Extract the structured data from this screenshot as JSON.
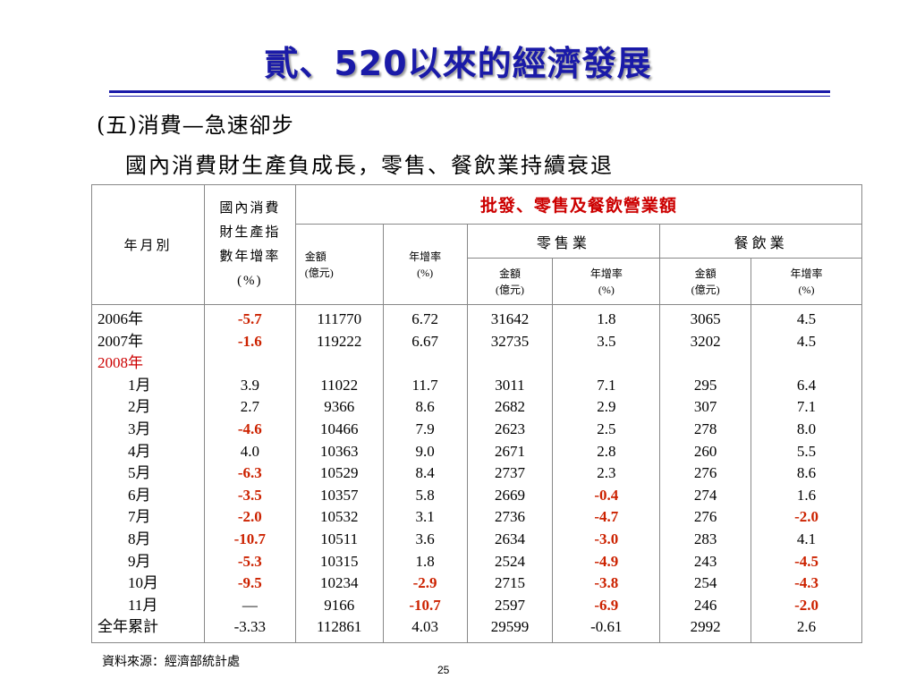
{
  "title": "貳、520以來的經濟發展",
  "section": "(五)消費—急速卻步",
  "subtitle": "國內消費財生產負成長，零售、餐飲業持續衰退",
  "table": {
    "header": {
      "year_month": "年月別",
      "cpi_lines": [
        "國內消費",
        "財生產指",
        "數年增率",
        "(%)"
      ],
      "group_title": "批發、零售及餐飲營業額",
      "retail": "零售業",
      "food": "餐飲業",
      "amount_label": "金額",
      "amount_unit": "(億元)",
      "growth_label": "年增率",
      "growth_unit": "(%)"
    },
    "rows": [
      {
        "label": "2006年",
        "month": false,
        "label_red": false,
        "cpi": "-5.7",
        "cpi_red": true,
        "amt": "111770",
        "amt_gr": "6.72",
        "amt_gr_red": false,
        "ret": "31642",
        "ret_gr": "1.8",
        "ret_gr_red": false,
        "food": "3065",
        "food_gr": "4.5",
        "food_gr_red": false
      },
      {
        "label": "2007年",
        "month": false,
        "label_red": false,
        "cpi": "-1.6",
        "cpi_red": true,
        "amt": "119222",
        "amt_gr": "6.67",
        "amt_gr_red": false,
        "ret": "32735",
        "ret_gr": "3.5",
        "ret_gr_red": false,
        "food": "3202",
        "food_gr": "4.5",
        "food_gr_red": false
      },
      {
        "label": "2008年",
        "month": false,
        "label_red": true,
        "cpi": "",
        "cpi_red": false,
        "amt": "",
        "amt_gr": "",
        "amt_gr_red": false,
        "ret": "",
        "ret_gr": "",
        "ret_gr_red": false,
        "food": "",
        "food_gr": "",
        "food_gr_red": false
      },
      {
        "label": "1月",
        "month": true,
        "label_red": false,
        "cpi": "3.9",
        "cpi_red": false,
        "amt": "11022",
        "amt_gr": "11.7",
        "amt_gr_red": false,
        "ret": "3011",
        "ret_gr": "7.1",
        "ret_gr_red": false,
        "food": "295",
        "food_gr": "6.4",
        "food_gr_red": false
      },
      {
        "label": "2月",
        "month": true,
        "label_red": false,
        "cpi": "2.7",
        "cpi_red": false,
        "amt": "9366",
        "amt_gr": "8.6",
        "amt_gr_red": false,
        "ret": "2682",
        "ret_gr": "2.9",
        "ret_gr_red": false,
        "food": "307",
        "food_gr": "7.1",
        "food_gr_red": false
      },
      {
        "label": "3月",
        "month": true,
        "label_red": false,
        "cpi": "-4.6",
        "cpi_red": true,
        "amt": "10466",
        "amt_gr": "7.9",
        "amt_gr_red": false,
        "ret": "2623",
        "ret_gr": "2.5",
        "ret_gr_red": false,
        "food": "278",
        "food_gr": "8.0",
        "food_gr_red": false
      },
      {
        "label": "4月",
        "month": true,
        "label_red": false,
        "cpi": "4.0",
        "cpi_red": false,
        "amt": "10363",
        "amt_gr": "9.0",
        "amt_gr_red": false,
        "ret": "2671",
        "ret_gr": "2.8",
        "ret_gr_red": false,
        "food": "260",
        "food_gr": "5.5",
        "food_gr_red": false
      },
      {
        "label": "5月",
        "month": true,
        "label_red": false,
        "cpi": "-6.3",
        "cpi_red": true,
        "amt": "10529",
        "amt_gr": "8.4",
        "amt_gr_red": false,
        "ret": "2737",
        "ret_gr": "2.3",
        "ret_gr_red": false,
        "food": "276",
        "food_gr": "8.6",
        "food_gr_red": false
      },
      {
        "label": "6月",
        "month": true,
        "label_red": false,
        "cpi": "-3.5",
        "cpi_red": true,
        "amt": "10357",
        "amt_gr": "5.8",
        "amt_gr_red": false,
        "ret": "2669",
        "ret_gr": "-0.4",
        "ret_gr_red": true,
        "food": "274",
        "food_gr": "1.6",
        "food_gr_red": false
      },
      {
        "label": "7月",
        "month": true,
        "label_red": false,
        "cpi": "-2.0",
        "cpi_red": true,
        "amt": "10532",
        "amt_gr": "3.1",
        "amt_gr_red": false,
        "ret": "2736",
        "ret_gr": "-4.7",
        "ret_gr_red": true,
        "food": "276",
        "food_gr": "-2.0",
        "food_gr_red": true
      },
      {
        "label": "8月",
        "month": true,
        "label_red": false,
        "cpi": "-10.7",
        "cpi_red": true,
        "amt": "10511",
        "amt_gr": "3.6",
        "amt_gr_red": false,
        "ret": "2634",
        "ret_gr": "-3.0",
        "ret_gr_red": true,
        "food": "283",
        "food_gr": "4.1",
        "food_gr_red": false
      },
      {
        "label": "9月",
        "month": true,
        "label_red": false,
        "cpi": "-5.3",
        "cpi_red": true,
        "amt": "10315",
        "amt_gr": "1.8",
        "amt_gr_red": false,
        "ret": "2524",
        "ret_gr": "-4.9",
        "ret_gr_red": true,
        "food": "243",
        "food_gr": "-4.5",
        "food_gr_red": true
      },
      {
        "label": "10月",
        "month": true,
        "label_red": false,
        "cpi": "-9.5",
        "cpi_red": true,
        "amt": "10234",
        "amt_gr": "-2.9",
        "amt_gr_red": true,
        "ret": "2715",
        "ret_gr": "-3.8",
        "ret_gr_red": true,
        "food": "254",
        "food_gr": "-4.3",
        "food_gr_red": true
      },
      {
        "label": "11月",
        "month": true,
        "label_red": false,
        "cpi": "—",
        "cpi_red": false,
        "amt": "9166",
        "amt_gr": "-10.7",
        "amt_gr_red": true,
        "ret": "2597",
        "ret_gr": "-6.9",
        "ret_gr_red": true,
        "food": "246",
        "food_gr": "-2.0",
        "food_gr_red": true
      },
      {
        "label": "全年累計",
        "month": false,
        "label_red": false,
        "cpi": "-3.33",
        "cpi_red": false,
        "amt": "112861",
        "amt_gr": "4.03",
        "amt_gr_red": false,
        "ret": "29599",
        "ret_gr": "-0.61",
        "ret_gr_red": false,
        "food": "2992",
        "food_gr": "2.6",
        "food_gr_red": false
      }
    ]
  },
  "source": "資料來源：經濟部統計處",
  "page_number": "25",
  "colors": {
    "title": "#1a1aa8",
    "highlight_red": "#cc2200",
    "header_red": "#cc0000"
  }
}
